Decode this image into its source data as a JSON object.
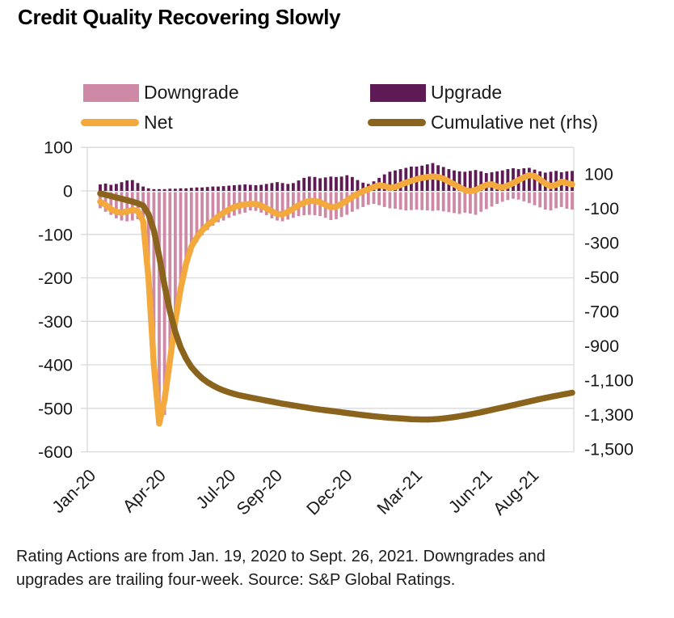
{
  "title": "Credit Quality Recovering Slowly",
  "legend": {
    "downgrade": "Downgrade",
    "upgrade": "Upgrade",
    "net": "Net",
    "cumulative": "Cumulative net (rhs)"
  },
  "colors": {
    "downgrade": "#cd89a6",
    "upgrade": "#5d1a55",
    "net": "#f4a93d",
    "cumulative": "#8a631c",
    "grid": "#d9d9d9",
    "axis_text": "#1a1a1a"
  },
  "footnote": {
    "line1": "Rating Actions are from Jan. 19, 2020 to Sept. 26, 2021. Downgrades and",
    "line2": "upgrades are trailing four-week. Source: S&P Global Ratings."
  },
  "chart_data": {
    "type": "bar",
    "subtype": "weekly bars with two overlay lines",
    "title": "Credit Quality Recovering Slowly",
    "xlabel": "",
    "ylabel_left": "",
    "ylabel_right": "",
    "grid": "horizontal",
    "legend_position": "top",
    "left_axis": {
      "range": [
        -600,
        100
      ],
      "ticks": [
        100,
        0,
        -100,
        -200,
        -300,
        -400,
        -500,
        -600
      ]
    },
    "right_axis": {
      "range": [
        -1500,
        100
      ],
      "ticks": [
        100,
        -100,
        -300,
        -500,
        -700,
        -900,
        -1100,
        -1300,
        -1500
      ]
    },
    "x_label_ticks": [
      {
        "label": "Jan-20",
        "month_offset": 0
      },
      {
        "label": "Apr-20",
        "month_offset": 3
      },
      {
        "label": "Jul-20",
        "month_offset": 6
      },
      {
        "label": "Sep-20",
        "month_offset": 8
      },
      {
        "label": "Dec-20",
        "month_offset": 11
      },
      {
        "label": "Mar-21",
        "month_offset": 14
      },
      {
        "label": "Jun-21",
        "month_offset": 17
      },
      {
        "label": "Aug-21",
        "month_offset": 19
      }
    ],
    "x_weeks": [
      "2020-01-19",
      "2020-01-26",
      "2020-02-02",
      "2020-02-09",
      "2020-02-16",
      "2020-02-23",
      "2020-03-01",
      "2020-03-08",
      "2020-03-15",
      "2020-03-22",
      "2020-03-29",
      "2020-04-05",
      "2020-04-12",
      "2020-04-19",
      "2020-04-26",
      "2020-05-03",
      "2020-05-10",
      "2020-05-17",
      "2020-05-24",
      "2020-05-31",
      "2020-06-07",
      "2020-06-14",
      "2020-06-21",
      "2020-06-28",
      "2020-07-05",
      "2020-07-12",
      "2020-07-19",
      "2020-07-26",
      "2020-08-02",
      "2020-08-09",
      "2020-08-16",
      "2020-08-23",
      "2020-08-30",
      "2020-09-06",
      "2020-09-13",
      "2020-09-20",
      "2020-09-27",
      "2020-10-04",
      "2020-10-11",
      "2020-10-18",
      "2020-10-25",
      "2020-11-01",
      "2020-11-08",
      "2020-11-15",
      "2020-11-22",
      "2020-11-29",
      "2020-12-06",
      "2020-12-13",
      "2020-12-20",
      "2020-12-27",
      "2021-01-03",
      "2021-01-10",
      "2021-01-17",
      "2021-01-24",
      "2021-01-31",
      "2021-02-07",
      "2021-02-14",
      "2021-02-21",
      "2021-02-28",
      "2021-03-07",
      "2021-03-14",
      "2021-03-21",
      "2021-03-28",
      "2021-04-04",
      "2021-04-11",
      "2021-04-18",
      "2021-04-25",
      "2021-05-02",
      "2021-05-09",
      "2021-05-16",
      "2021-05-23",
      "2021-05-30",
      "2021-06-06",
      "2021-06-13",
      "2021-06-20",
      "2021-06-27",
      "2021-07-04",
      "2021-07-11",
      "2021-07-18",
      "2021-07-25",
      "2021-08-01",
      "2021-08-08",
      "2021-08-15",
      "2021-08-22",
      "2021-08-29",
      "2021-09-05",
      "2021-09-12",
      "2021-09-19",
      "2021-09-26"
    ],
    "series": [
      {
        "name": "Downgrade",
        "type": "bar",
        "axis": "left",
        "color": "#cd89a6",
        "values": [
          -40,
          -48,
          -55,
          -63,
          -68,
          -70,
          -68,
          -65,
          -85,
          -200,
          -430,
          -520,
          -515,
          -420,
          -320,
          -240,
          -182,
          -142,
          -118,
          -102,
          -90,
          -80,
          -72,
          -68,
          -62,
          -57,
          -53,
          -50,
          -45,
          -46,
          -50,
          -56,
          -63,
          -68,
          -70,
          -66,
          -62,
          -58,
          -56,
          -55,
          -56,
          -58,
          -62,
          -67,
          -65,
          -60,
          -55,
          -48,
          -42,
          -37,
          -32,
          -30,
          -33,
          -37,
          -40,
          -41,
          -43,
          -45,
          -44,
          -43,
          -44,
          -45,
          -46,
          -45,
          -47,
          -49,
          -51,
          -53,
          -50,
          -52,
          -55,
          -48,
          -42,
          -36,
          -30,
          -25,
          -21,
          -18,
          -20,
          -24,
          -28,
          -33,
          -38,
          -43,
          -45,
          -40,
          -37,
          -41,
          -43
        ]
      },
      {
        "name": "Upgrade",
        "type": "bar",
        "axis": "left",
        "color": "#5d1a55",
        "values": [
          15,
          17,
          14,
          16,
          20,
          24,
          25,
          18,
          10,
          6,
          4,
          4,
          4,
          5,
          5,
          6,
          6,
          7,
          8,
          8,
          9,
          10,
          10,
          11,
          12,
          13,
          14,
          15,
          14,
          13,
          14,
          16,
          18,
          20,
          18,
          16,
          18,
          24,
          30,
          33,
          32,
          29,
          31,
          33,
          32,
          33,
          36,
          32,
          25,
          19,
          16,
          22,
          30,
          38,
          44,
          47,
          50,
          53,
          56,
          56,
          58,
          61,
          64,
          59,
          55,
          50,
          47,
          45,
          44,
          46,
          48,
          45,
          41,
          43,
          45,
          47,
          50,
          52,
          50,
          52,
          53,
          49,
          45,
          42,
          44,
          46,
          43,
          45,
          46
        ]
      },
      {
        "name": "Net",
        "type": "line",
        "axis": "left",
        "color": "#f4a93d",
        "values": [
          -25,
          -32,
          -42,
          -48,
          -50,
          -47,
          -44,
          -46,
          -70,
          -200,
          -400,
          -535,
          -480,
          -390,
          -300,
          -225,
          -168,
          -128,
          -107,
          -91,
          -79,
          -69,
          -59,
          -50,
          -43,
          -37,
          -33,
          -31,
          -30,
          -30,
          -34,
          -40,
          -47,
          -53,
          -54,
          -48,
          -41,
          -33,
          -27,
          -23,
          -23,
          -26,
          -32,
          -38,
          -36,
          -30,
          -22,
          -14,
          -7,
          -1,
          4,
          9,
          13,
          11,
          7,
          9,
          14,
          19,
          23,
          27,
          30,
          32,
          33,
          32,
          28,
          22,
          15,
          8,
          2,
          -1,
          2,
          8,
          14,
          15,
          10,
          8,
          12,
          18,
          25,
          31,
          36,
          34,
          26,
          17,
          11,
          14,
          21,
          18,
          15
        ]
      },
      {
        "name": "Cumulative net (rhs)",
        "type": "line",
        "axis": "right",
        "color": "#8a631c",
        "values": [
          -15,
          -22,
          -30,
          -38,
          -46,
          -54,
          -62,
          -72,
          -85,
          -135,
          -230,
          -380,
          -550,
          -700,
          -820,
          -910,
          -975,
          -1025,
          -1060,
          -1090,
          -1113,
          -1132,
          -1148,
          -1161,
          -1172,
          -1181,
          -1189,
          -1196,
          -1202,
          -1208,
          -1214,
          -1220,
          -1226,
          -1232,
          -1238,
          -1243,
          -1248,
          -1253,
          -1258,
          -1263,
          -1268,
          -1272,
          -1276,
          -1280,
          -1284,
          -1288,
          -1292,
          -1296,
          -1300,
          -1304,
          -1308,
          -1311,
          -1314,
          -1317,
          -1320,
          -1322,
          -1324,
          -1326,
          -1328,
          -1329,
          -1330,
          -1330,
          -1329,
          -1327,
          -1324,
          -1320,
          -1316,
          -1311,
          -1306,
          -1300,
          -1294,
          -1288,
          -1281,
          -1274,
          -1267,
          -1260,
          -1253,
          -1246,
          -1239,
          -1232,
          -1225,
          -1218,
          -1211,
          -1204,
          -1198,
          -1192,
          -1186,
          -1180,
          -1174
        ]
      }
    ]
  }
}
